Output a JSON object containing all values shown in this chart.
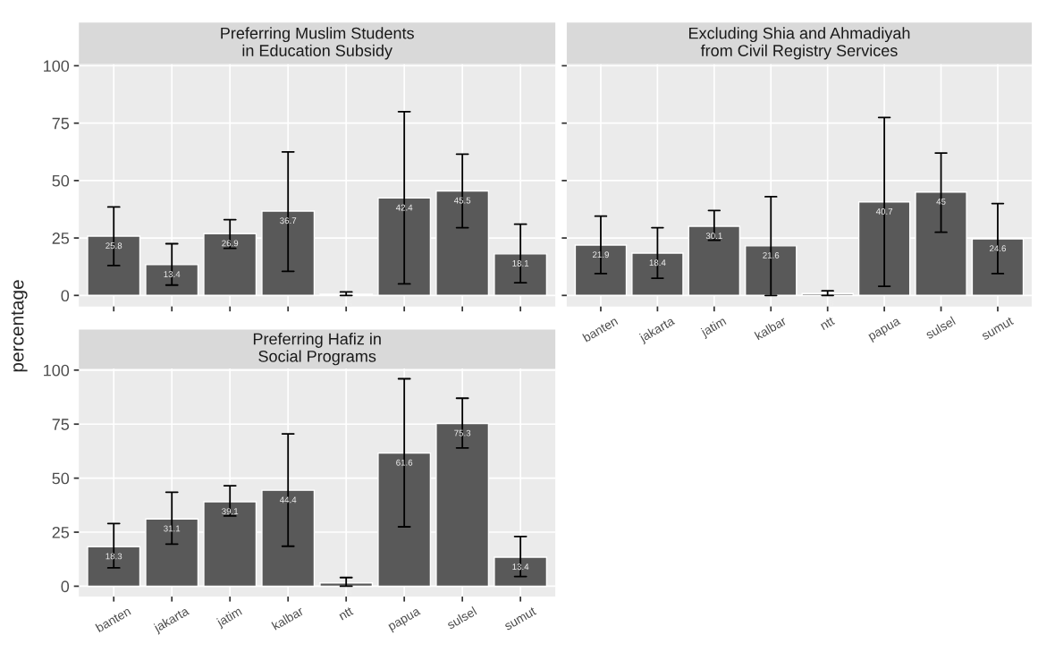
{
  "chart_data": [
    {
      "type": "bar",
      "title": "Preferring Muslim Students\nin Education Subsidy",
      "ylabel": "percentage",
      "categories": [
        null,
        null,
        null,
        null,
        null,
        null,
        null,
        null
      ],
      "series": [
        {
          "color": "#595959",
          "values": [
            25.8,
            13.4,
            26.9,
            36.7,
            0.5,
            42.4,
            45.5,
            18.1
          ],
          "errors": [
            [
              13,
              38.5
            ],
            [
              4.5,
              22.5
            ],
            [
              20.5,
              33
            ],
            [
              10.5,
              62.5
            ],
            [
              0,
              1.5
            ],
            [
              5,
              80
            ],
            [
              29.5,
              61.5
            ],
            [
              5.5,
              31
            ]
          ]
        }
      ],
      "data_labels": true,
      "ylim": [
        -4.8,
        100.8
      ],
      "yticks": [
        0,
        25,
        50,
        75,
        100
      ],
      "grid": true,
      "tick_labels": "y"
    },
    {
      "type": "bar",
      "title": "Excluding Shia and Ahmadiyah\nfrom Civil Registry Services",
      "categories": [
        "banten",
        "jakarta",
        "jatim",
        "kalbar",
        "ntt",
        "papua",
        "sulsel",
        "sumut"
      ],
      "series": [
        {
          "color": "#595959",
          "values": [
            21.9,
            18.4,
            30.1,
            21.6,
            0.8,
            40.7,
            45,
            24.6
          ],
          "errors": [
            [
              9.5,
              34.5
            ],
            [
              7.5,
              29.5
            ],
            [
              24,
              37
            ],
            [
              0,
              43
            ],
            [
              0,
              2
            ],
            [
              4,
              77.5
            ],
            [
              27.5,
              62
            ],
            [
              9.5,
              40
            ]
          ]
        }
      ],
      "data_labels": true,
      "ylim": [
        -4.8,
        100.8
      ],
      "yticks": [
        0,
        25,
        50,
        75,
        100
      ],
      "grid": true,
      "tick_labels": "x"
    },
    {
      "type": "bar",
      "title": "Preferring Hafiz in\nSocial Programs",
      "categories": [
        "banten",
        "jakarta",
        "jatim",
        "kalbar",
        "ntt",
        "papua",
        "sulsel",
        "sumut"
      ],
      "series": [
        {
          "color": "#595959",
          "values": [
            18.3,
            31.1,
            39.1,
            44.4,
            1.5,
            61.6,
            75.3,
            13.4
          ],
          "errors": [
            [
              8.5,
              29
            ],
            [
              19.5,
              43.5
            ],
            [
              32.5,
              46.5
            ],
            [
              18.5,
              70.5
            ],
            [
              0,
              4
            ],
            [
              27.5,
              96
            ],
            [
              64,
              87
            ],
            [
              4.5,
              23
            ]
          ]
        }
      ],
      "data_labels": true,
      "ylim": [
        -4.8,
        100.8
      ],
      "yticks": [
        0,
        25,
        50,
        75,
        100
      ],
      "grid": true
    }
  ]
}
